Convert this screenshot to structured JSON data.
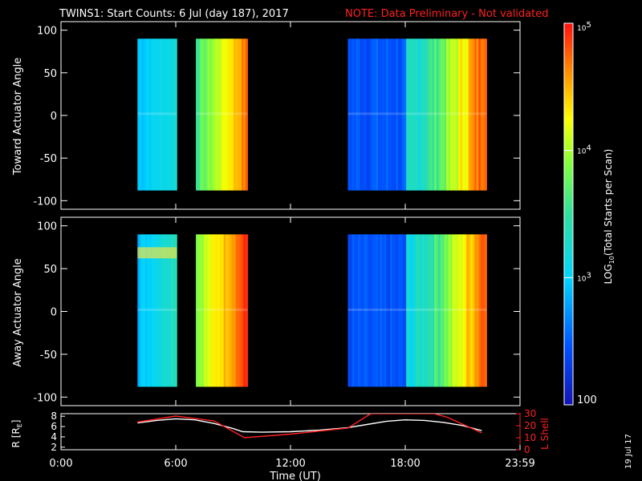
{
  "title": {
    "main": "TWINS1: Start Counts:  6 Jul (day 187), 2017",
    "note": "NOTE: Data Preliminary - Not validated"
  },
  "colors": {
    "background": "#000000",
    "foreground": "#ffffff",
    "note": "#ff2020",
    "ephemeris_r": "#ffffff",
    "ephemeris_l": "#ff2020",
    "colormap": "rainbow (blue → cyan → green → yellow → red)"
  },
  "colorbar": {
    "label": "LOG10(Total Starts per Scan)",
    "label_base": "LOG",
    "label_sub": "10",
    "label_rest": "(Total Starts per Scan)",
    "scale": "log",
    "range": [
      100,
      100000
    ],
    "ticks": [
      {
        "value": 100000,
        "base": "10",
        "exp": "5"
      },
      {
        "value": 10000,
        "base": "10",
        "exp": "4"
      },
      {
        "value": 1000,
        "base": "10",
        "exp": "3"
      },
      {
        "value": 100,
        "base": "100",
        "exp": ""
      }
    ]
  },
  "footer": {
    "date_stamp": "19 Jul 17"
  },
  "chart_data": [
    {
      "type": "heatmap",
      "panel": "toward",
      "ylabel": "Toward Actuator Angle",
      "ylim": [
        -110,
        110
      ],
      "yticks": [
        "100",
        "50",
        "0",
        "-50",
        "-100"
      ],
      "y_range_data": [
        -88,
        90
      ],
      "x_unit": "hours UT",
      "segments": [
        {
          "x": [
            4.0,
            6.05
          ],
          "log10_counts_lo": 2.95,
          "log10_counts_hi": 3.2
        },
        {
          "x": [
            7.05,
            9.75
          ],
          "log10_counts_lo": 3.6,
          "log10_counts_hi": 4.7
        },
        {
          "x": [
            15.0,
            22.25
          ],
          "log10_counts_lo": 2.35,
          "log10_counts_hi": 4.9
        }
      ]
    },
    {
      "type": "heatmap",
      "panel": "away",
      "ylabel": "Away Actuator Angle",
      "ylim": [
        -110,
        110
      ],
      "yticks": [
        "100",
        "50",
        "0",
        "-50",
        "-100"
      ],
      "y_range_data": [
        -88,
        90
      ],
      "x_unit": "hours UT",
      "segments": [
        {
          "x": [
            4.0,
            6.05
          ],
          "log10_counts_lo": 2.9,
          "log10_counts_hi": 3.4
        },
        {
          "x": [
            7.05,
            9.75
          ],
          "log10_counts_lo": 3.9,
          "log10_counts_hi": 4.9
        },
        {
          "x": [
            15.0,
            22.25
          ],
          "log10_counts_lo": 2.3,
          "log10_counts_hi": 4.9
        }
      ]
    },
    {
      "type": "line",
      "panel": "ephemeris",
      "ylabel_left": "R [RE]",
      "ylabel_left_base": "R [R",
      "ylabel_left_sub": "E",
      "ylabel_left_close": "]",
      "ylabel_right": "L Shell",
      "ylim_left": [
        1.5,
        8.5
      ],
      "ylim_right": [
        0,
        30
      ],
      "yticks_left": [
        "8",
        "6",
        "4",
        "2"
      ],
      "yticks_right": [
        "30",
        "20",
        "10",
        "0"
      ],
      "series": [
        {
          "axis": "left",
          "x": [
            4.0,
            5.0,
            6.0,
            7.0,
            8.0,
            9.0,
            9.5,
            10.5,
            12.0,
            13.5,
            15.0,
            16.0,
            17.0,
            18.0,
            19.0,
            20.0,
            21.0,
            22.0
          ],
          "y": [
            6.7,
            7.2,
            7.5,
            7.3,
            6.6,
            5.6,
            5.0,
            4.9,
            5.0,
            5.3,
            5.8,
            6.4,
            7.0,
            7.3,
            7.2,
            6.8,
            6.2,
            5.2
          ]
        },
        {
          "axis": "right",
          "x": [
            4.0,
            6.0,
            8.0,
            9.6,
            12.0,
            15.0,
            16.2,
            19.5,
            20.2,
            22.0
          ],
          "y": [
            23,
            28,
            24,
            10,
            13,
            18,
            30,
            30,
            27,
            14
          ]
        }
      ]
    }
  ],
  "xaxis": {
    "label": "Time (UT)",
    "ticks": [
      {
        "value": 0,
        "label": "0:00"
      },
      {
        "value": 6,
        "label": "6:00"
      },
      {
        "value": 12,
        "label": "12:00"
      },
      {
        "value": 18,
        "label": "18:00"
      },
      {
        "value": 24,
        "label": "23:59"
      }
    ]
  }
}
